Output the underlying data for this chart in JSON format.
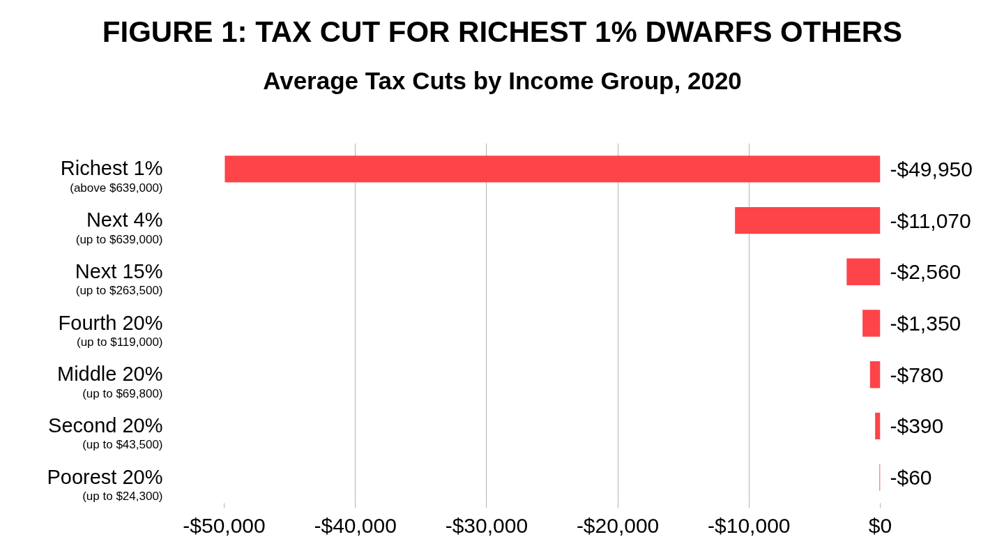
{
  "chart_data": {
    "type": "bar",
    "orientation": "horizontal",
    "title": "FIGURE 1: TAX CUT FOR RICHEST 1% DWARFS OTHERS",
    "subtitle": "Average Tax Cuts by Income Group, 2020",
    "categories": [
      "Richest 1%\n(above $639,000)",
      "Next 4%\n(up to $639,000)",
      "Next 15%\n(up to $263,500)",
      "Fourth 20%\n(up to $119,000)",
      "Middle 20%\n(up to $69,800)",
      "Second 20%\n(up to $43,500)",
      "Poorest 20%\n(up to $24,300)"
    ],
    "values": [
      -49950,
      -11070,
      -2560,
      -1350,
      -780,
      -390,
      -60
    ],
    "value_labels": [
      "-$49,950",
      "-$11,070",
      "-$2,560",
      "-$1,350",
      "-$780",
      "-$390",
      "-$60"
    ],
    "color": "#fc4449",
    "xlim": [
      -50000,
      0
    ],
    "xticks": [
      {
        "value": -50000,
        "label": "-$50,000"
      },
      {
        "value": -40000,
        "label": "-$40,000"
      },
      {
        "value": -30000,
        "label": "-$30,000"
      },
      {
        "value": -20000,
        "label": "-$20,000"
      },
      {
        "value": -10000,
        "label": "-$10,000"
      },
      {
        "value": 0,
        "label": "$0"
      }
    ],
    "grid": "x"
  }
}
